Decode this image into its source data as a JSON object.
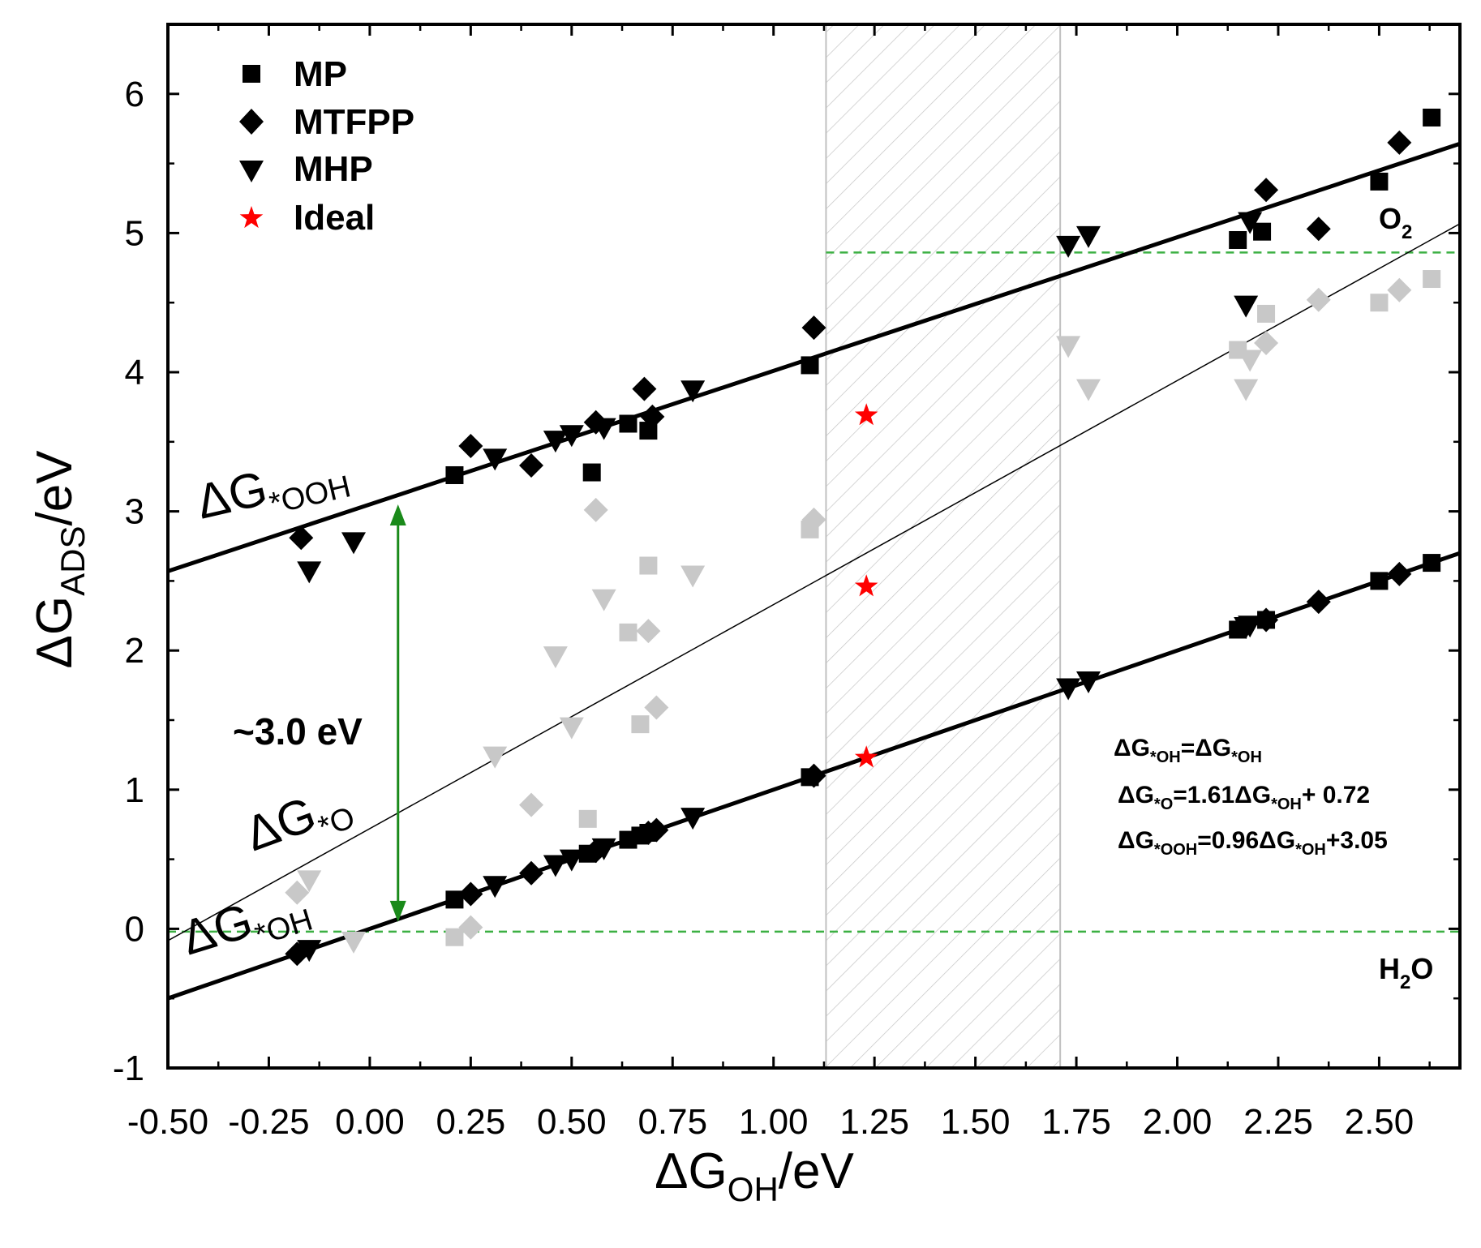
{
  "chart_data": {
    "type": "scatter",
    "xlabel": {
      "main": "ΔG",
      "sub": "OH",
      "unit": "/eV"
    },
    "ylabel": {
      "main": "ΔG",
      "sub": "ADS",
      "unit": "/eV"
    },
    "xlim": [
      -0.5,
      2.7
    ],
    "ylim": [
      -1,
      6.5
    ],
    "x_ticks": [
      "-0.50",
      "-0.25",
      "0.00",
      "0.25",
      "0.50",
      "0.75",
      "1.00",
      "1.25",
      "1.50",
      "1.75",
      "2.00",
      "2.25",
      "2.50"
    ],
    "y_ticks": [
      "-1",
      "0",
      "1",
      "2",
      "3",
      "4",
      "5",
      "6"
    ],
    "legend": [
      {
        "label": "MP",
        "marker": "square",
        "color": "#000000"
      },
      {
        "label": "MTFPP",
        "marker": "diamond",
        "color": "#000000"
      },
      {
        "label": "MHP",
        "marker": "triangle-down",
        "color": "#000000"
      },
      {
        "label": "Ideal",
        "marker": "star",
        "color": "#ff0000"
      }
    ],
    "fit_lines": [
      {
        "name": "*OOH",
        "label_main": "ΔG",
        "label_sub": "*OOH",
        "slope": 0.96,
        "intercept": 3.05,
        "weight": "bold"
      },
      {
        "name": "*O",
        "label_main": "ΔG",
        "label_sub": "*O",
        "slope": 1.61,
        "intercept": 0.72,
        "weight": "thin"
      },
      {
        "name": "*OH",
        "label_main": "ΔG",
        "label_sub": "*OH",
        "slope": 1.0,
        "intercept": 0.0,
        "weight": "bold"
      }
    ],
    "reference_lines": [
      {
        "y": 4.86,
        "label_main": "O",
        "label_sub": "2",
        "color": "#3cb043"
      },
      {
        "y": -0.02,
        "label_main": "H",
        "label_sub": "2",
        "label_tail": "O",
        "color": "#3cb043"
      }
    ],
    "shaded_region": {
      "x": [
        1.13,
        1.71
      ]
    },
    "gap_annotation": {
      "label": "~3.0 eV",
      "x": 0.07,
      "y_from": 0.05,
      "y_to": 3.05,
      "color": "#1a8a1a"
    },
    "equations": [
      {
        "a": "ΔG",
        "a_sub": "*OH",
        "b": "=ΔG",
        "b_sub": "*OH",
        "c": ""
      },
      {
        "a": "ΔG",
        "a_sub": "*O",
        "b": "=1.61ΔG",
        "b_sub": "*OH",
        "c": "+ 0.72"
      },
      {
        "a": "ΔG",
        "a_sub": "*OOH",
        "b": "=0.96ΔG",
        "b_sub": "*OH",
        "c": "+3.05"
      }
    ],
    "series": [
      {
        "name": "MP *OOH",
        "marker": "square",
        "color": "#000000",
        "points": [
          [
            0.21,
            3.26
          ],
          [
            0.55,
            3.28
          ],
          [
            0.64,
            3.63
          ],
          [
            0.69,
            3.58
          ],
          [
            1.09,
            4.05
          ],
          [
            2.15,
            4.95
          ],
          [
            2.21,
            5.01
          ],
          [
            2.5,
            5.37
          ],
          [
            2.63,
            5.83
          ]
        ]
      },
      {
        "name": "MTFPP *OOH",
        "marker": "diamond",
        "color": "#000000",
        "points": [
          [
            -0.17,
            2.81
          ],
          [
            0.25,
            3.47
          ],
          [
            0.4,
            3.33
          ],
          [
            0.56,
            3.64
          ],
          [
            0.68,
            3.88
          ],
          [
            0.7,
            3.68
          ],
          [
            1.1,
            4.32
          ],
          [
            2.22,
            5.31
          ],
          [
            2.35,
            5.03
          ],
          [
            2.55,
            5.65
          ]
        ]
      },
      {
        "name": "MHP *OOH",
        "marker": "triangle-down",
        "color": "#000000",
        "points": [
          [
            -0.15,
            2.57
          ],
          [
            -0.04,
            2.78
          ],
          [
            0.31,
            3.38
          ],
          [
            0.46,
            3.51
          ],
          [
            0.5,
            3.55
          ],
          [
            0.58,
            3.6
          ],
          [
            0.8,
            3.87
          ],
          [
            1.73,
            4.91
          ],
          [
            1.78,
            4.98
          ],
          [
            2.17,
            4.48
          ],
          [
            2.18,
            5.08
          ]
        ]
      },
      {
        "name": "MP *O",
        "marker": "square",
        "color": "#c8c8c8",
        "points": [
          [
            0.21,
            -0.06
          ],
          [
            0.54,
            0.79
          ],
          [
            0.64,
            2.13
          ],
          [
            0.67,
            1.47
          ],
          [
            0.69,
            2.61
          ],
          [
            1.09,
            2.87
          ],
          [
            2.15,
            4.16
          ],
          [
            2.22,
            4.42
          ],
          [
            2.5,
            4.5
          ],
          [
            2.63,
            4.67
          ]
        ]
      },
      {
        "name": "MTFPP *O",
        "marker": "diamond",
        "color": "#c8c8c8",
        "points": [
          [
            -0.18,
            0.26
          ],
          [
            0.25,
            0.01
          ],
          [
            0.4,
            0.89
          ],
          [
            0.56,
            3.01
          ],
          [
            0.69,
            2.14
          ],
          [
            0.71,
            1.59
          ],
          [
            1.1,
            2.94
          ],
          [
            2.22,
            4.21
          ],
          [
            2.35,
            4.52
          ],
          [
            2.55,
            4.59
          ]
        ]
      },
      {
        "name": "MHP *O",
        "marker": "triangle-down",
        "color": "#c8c8c8",
        "points": [
          [
            -0.15,
            0.35
          ],
          [
            -0.04,
            -0.09
          ],
          [
            0.31,
            1.24
          ],
          [
            0.46,
            1.96
          ],
          [
            0.5,
            1.45
          ],
          [
            0.58,
            2.37
          ],
          [
            0.8,
            2.54
          ],
          [
            1.73,
            4.19
          ],
          [
            1.78,
            3.88
          ],
          [
            2.17,
            3.88
          ],
          [
            2.18,
            4.09
          ]
        ]
      },
      {
        "name": "MP *OH",
        "marker": "square",
        "color": "#000000",
        "points": [
          [
            0.21,
            0.21
          ],
          [
            0.54,
            0.54
          ],
          [
            0.64,
            0.64
          ],
          [
            0.67,
            0.67
          ],
          [
            0.69,
            0.69
          ],
          [
            1.09,
            1.09
          ],
          [
            2.15,
            2.15
          ],
          [
            2.22,
            2.22
          ],
          [
            2.5,
            2.5
          ],
          [
            2.63,
            2.63
          ]
        ]
      },
      {
        "name": "MTFPP *OH",
        "marker": "diamond",
        "color": "#000000",
        "points": [
          [
            -0.18,
            -0.18
          ],
          [
            0.25,
            0.25
          ],
          [
            0.4,
            0.4
          ],
          [
            0.56,
            0.56
          ],
          [
            0.69,
            0.69
          ],
          [
            0.71,
            0.71
          ],
          [
            1.1,
            1.1
          ],
          [
            2.22,
            2.22
          ],
          [
            2.35,
            2.35
          ],
          [
            2.55,
            2.55
          ]
        ]
      },
      {
        "name": "MHP *OH",
        "marker": "triangle-down",
        "color": "#000000",
        "points": [
          [
            -0.15,
            -0.15
          ],
          [
            0.31,
            0.31
          ],
          [
            0.46,
            0.46
          ],
          [
            0.5,
            0.5
          ],
          [
            0.58,
            0.58
          ],
          [
            0.8,
            0.8
          ],
          [
            1.73,
            1.73
          ],
          [
            1.78,
            1.78
          ],
          [
            2.17,
            2.17
          ],
          [
            2.18,
            2.18
          ]
        ]
      },
      {
        "name": "Ideal",
        "marker": "star",
        "color": "#ff0000",
        "points": [
          [
            1.23,
            1.23
          ],
          [
            1.23,
            2.46
          ],
          [
            1.23,
            3.69
          ]
        ]
      }
    ]
  }
}
